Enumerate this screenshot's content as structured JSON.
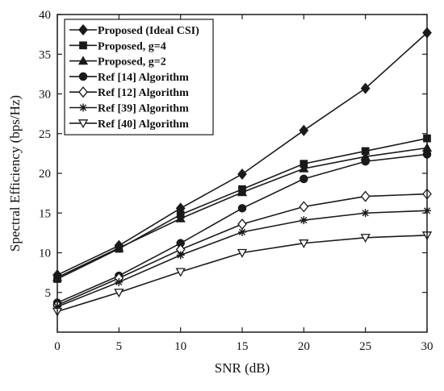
{
  "chart_data": {
    "type": "line",
    "title": "",
    "xlabel": "SNR (dB)",
    "ylabel": "Spectral Efficiency (bps/Hz)",
    "xlim": [
      0,
      30
    ],
    "ylim": [
      0,
      40
    ],
    "xticks": [
      0,
      5,
      10,
      15,
      20,
      25,
      30
    ],
    "yticks": [
      5,
      10,
      15,
      20,
      25,
      30,
      35,
      40
    ],
    "grid": false,
    "legend_position": "top-left",
    "x": [
      0,
      5,
      10,
      15,
      20,
      25,
      30
    ],
    "series": [
      {
        "name": "Proposed (Ideal CSI)",
        "marker": "diamond-filled",
        "values": [
          7.2,
          10.9,
          15.6,
          19.9,
          25.4,
          30.7,
          37.7
        ]
      },
      {
        "name": "Proposed, g=4",
        "marker": "square-filled",
        "values": [
          6.7,
          10.5,
          14.8,
          18.0,
          21.2,
          22.8,
          24.4
        ]
      },
      {
        "name": "Proposed, g=2",
        "marker": "triangle-filled",
        "values": [
          6.9,
          10.6,
          14.3,
          17.6,
          20.6,
          22.1,
          23.2
        ]
      },
      {
        "name": "Ref [14] Algorithm",
        "marker": "circle-filled",
        "values": [
          3.7,
          7.1,
          11.2,
          15.6,
          19.3,
          21.5,
          22.4
        ]
      },
      {
        "name": "Ref [12] Algorithm",
        "marker": "diamond-open",
        "values": [
          3.4,
          6.8,
          10.4,
          13.6,
          15.8,
          17.1,
          17.4
        ]
      },
      {
        "name": "Ref [39] Algorithm",
        "marker": "asterisk",
        "values": [
          3.2,
          6.3,
          9.7,
          12.6,
          14.1,
          15.0,
          15.3
        ]
      },
      {
        "name": "Ref [40] Algorithm",
        "marker": "triangle-down-open",
        "values": [
          2.6,
          5.0,
          7.6,
          10.0,
          11.2,
          11.9,
          12.2
        ]
      }
    ],
    "colors": {
      "lines": "#1a1a1a",
      "background": "#ffffff"
    }
  }
}
